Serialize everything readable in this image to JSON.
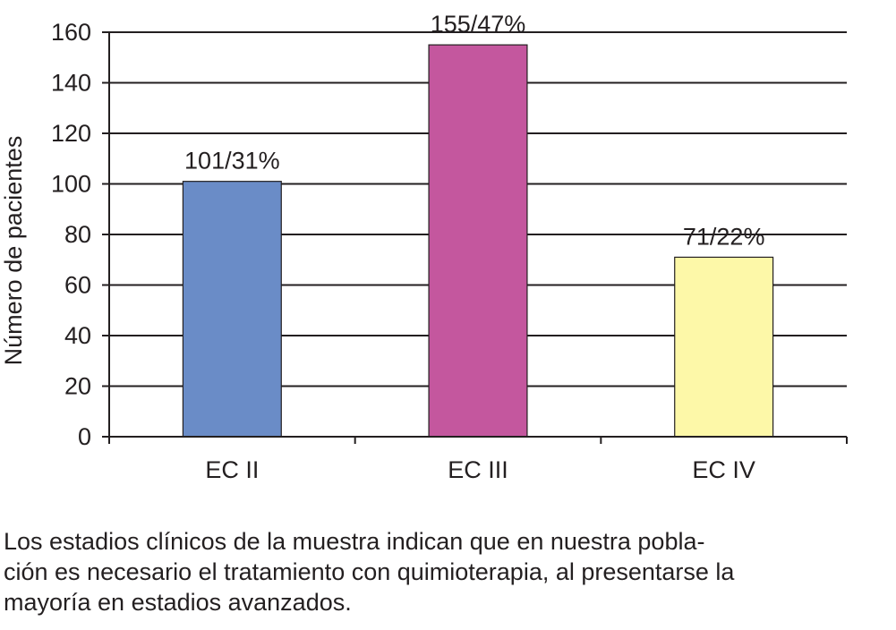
{
  "chart_data": {
    "type": "bar",
    "categories": [
      "EC II",
      "EC III",
      "EC IV"
    ],
    "values": [
      101,
      155,
      71
    ],
    "data_labels": [
      "101/31%",
      "155/47%",
      "71/22%"
    ],
    "colors": [
      "#6a8cc7",
      "#c4579e",
      "#fdf8a8"
    ],
    "ylabel": "Número de pacientes",
    "xlabel": "",
    "ylim": [
      0,
      160
    ],
    "yticks": [
      0,
      20,
      40,
      60,
      80,
      100,
      120,
      140,
      160
    ],
    "grid": true
  },
  "caption": {
    "lines": [
      "Los estadios clínicos de la muestra indican que en nuestra pobla-",
      "ción es necesario el tratamiento con quimioterapia, al presentarse la",
      "mayoría en estadios avanzados."
    ]
  }
}
